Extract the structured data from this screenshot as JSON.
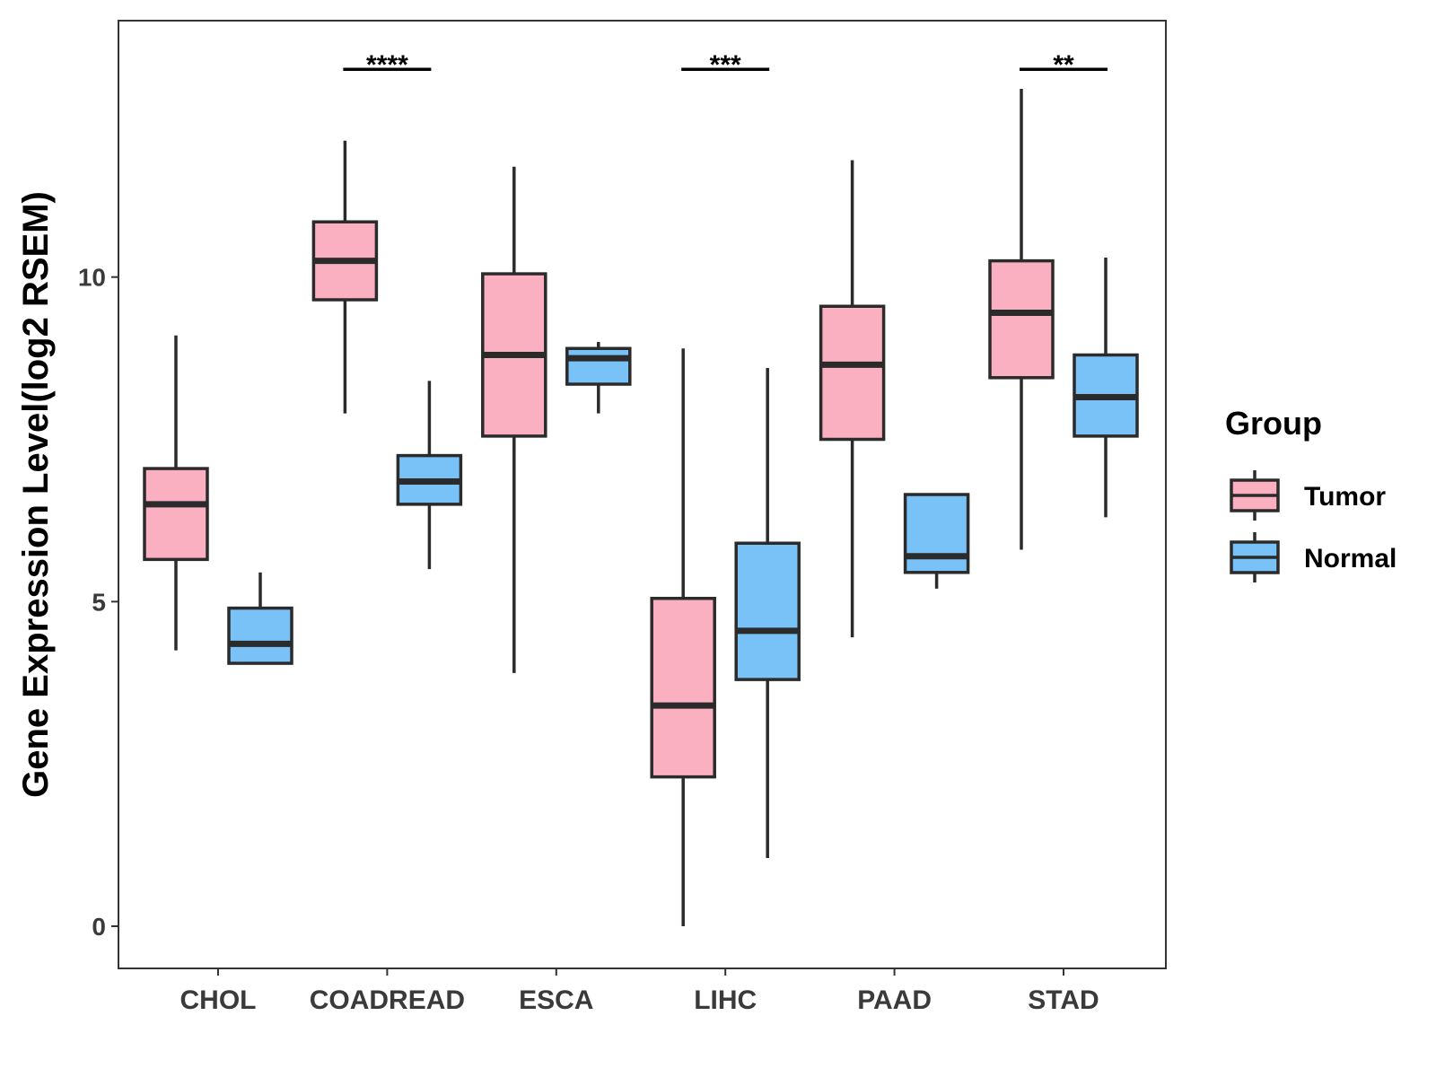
{
  "chart_data": {
    "type": "boxplot",
    "title": "",
    "xlabel": "",
    "ylabel": "Gene Expression Level(log2 RSEM)",
    "ylim": [
      -0.65,
      13.95
    ],
    "yticks": [
      0,
      5,
      10
    ],
    "categories": [
      "CHOL",
      "COADREAD",
      "ESCA",
      "LIHC",
      "PAAD",
      "STAD"
    ],
    "legend": {
      "title": "Group",
      "position": "right"
    },
    "series": [
      {
        "name": "Tumor",
        "color": "#FBB0C2",
        "boxes": [
          {
            "category": "CHOL",
            "min": 4.25,
            "q1": 5.65,
            "median": 6.5,
            "q3": 7.05,
            "max": 9.1
          },
          {
            "category": "COADREAD",
            "min": 7.9,
            "q1": 9.65,
            "median": 10.25,
            "q3": 10.85,
            "max": 12.1
          },
          {
            "category": "ESCA",
            "min": 3.9,
            "q1": 7.55,
            "median": 8.8,
            "q3": 10.05,
            "max": 11.7
          },
          {
            "category": "LIHC",
            "min": 0.0,
            "q1": 2.3,
            "median": 3.4,
            "q3": 5.05,
            "max": 8.9
          },
          {
            "category": "PAAD",
            "min": 4.45,
            "q1": 7.5,
            "median": 8.65,
            "q3": 9.55,
            "max": 11.8
          },
          {
            "category": "STAD",
            "min": 5.8,
            "q1": 8.45,
            "median": 9.45,
            "q3": 10.25,
            "max": 12.9
          }
        ]
      },
      {
        "name": "Normal",
        "color": "#78C2F8",
        "boxes": [
          {
            "category": "CHOL",
            "min": 4.05,
            "q1": 4.05,
            "median": 4.35,
            "q3": 4.9,
            "max": 5.45
          },
          {
            "category": "COADREAD",
            "min": 5.5,
            "q1": 6.5,
            "median": 6.85,
            "q3": 7.25,
            "max": 8.4
          },
          {
            "category": "ESCA",
            "min": 7.9,
            "q1": 8.35,
            "median": 8.75,
            "q3": 8.9,
            "max": 9.0
          },
          {
            "category": "LIHC",
            "min": 1.05,
            "q1": 3.8,
            "median": 4.55,
            "q3": 5.9,
            "max": 8.6
          },
          {
            "category": "PAAD",
            "min": 5.2,
            "q1": 5.45,
            "median": 5.7,
            "q3": 6.65,
            "max": 6.65
          },
          {
            "category": "STAD",
            "min": 6.3,
            "q1": 7.55,
            "median": 8.15,
            "q3": 8.8,
            "max": 10.3
          }
        ]
      }
    ],
    "significance": [
      {
        "category": "COADREAD",
        "label": "****",
        "y": 13.2
      },
      {
        "category": "LIHC",
        "label": "***",
        "y": 13.2
      },
      {
        "category": "STAD",
        "label": "**",
        "y": 13.2
      }
    ]
  }
}
